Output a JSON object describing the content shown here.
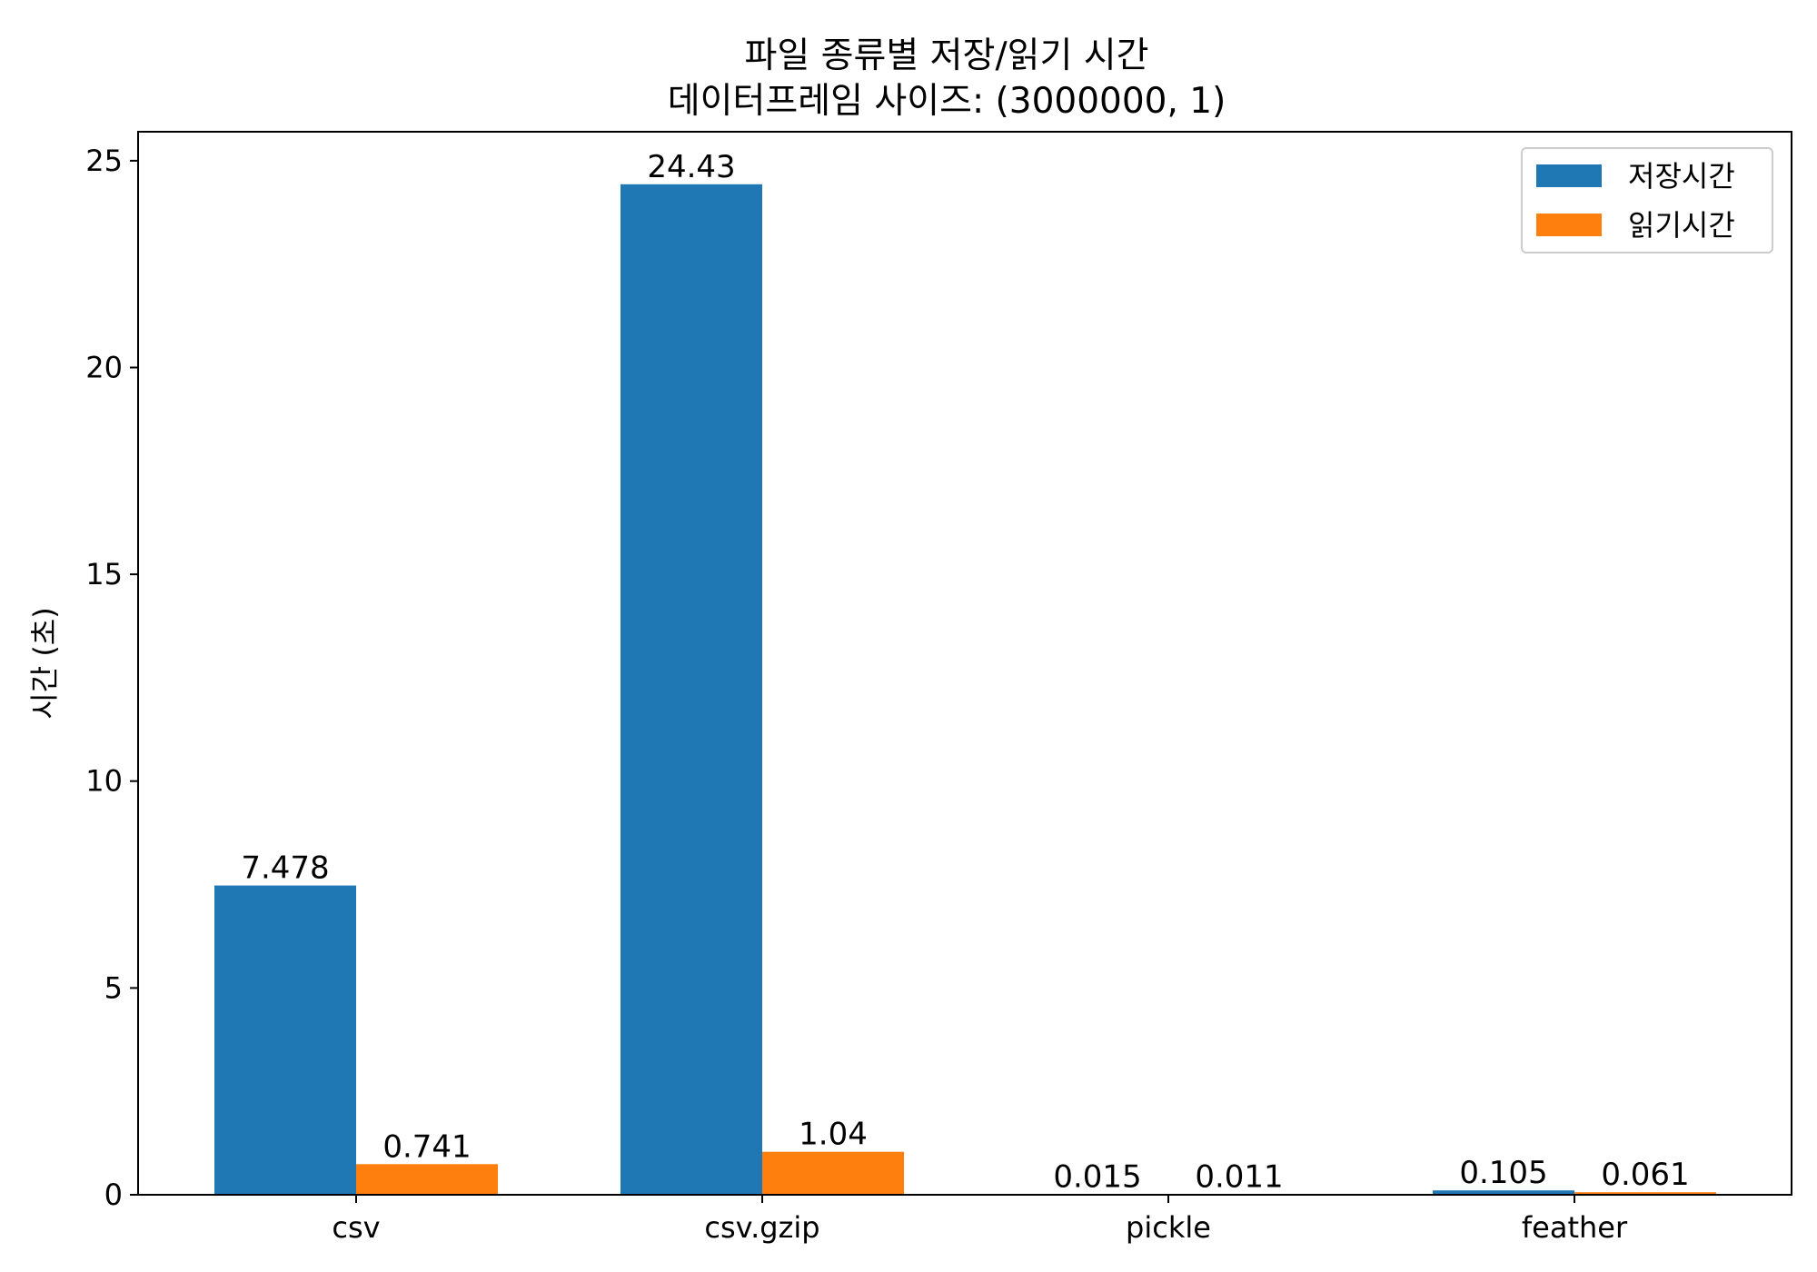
{
  "chart_data": {
    "type": "bar",
    "title": "파일 종류별 저장/읽기 시간",
    "subtitle": "데이터프레임 사이즈: (3000000, 1)",
    "xlabel": "",
    "ylabel": "시간 (초)",
    "categories": [
      "csv",
      "csv.gzip",
      "pickle",
      "feather"
    ],
    "series": [
      {
        "name": "저장시간",
        "color": "#1f77b4",
        "values": [
          7.478,
          24.43,
          0.015,
          0.105
        ],
        "labels": [
          "7.478",
          "24.43",
          "0.015",
          "0.105"
        ]
      },
      {
        "name": "읽기시간",
        "color": "#ff7f0e",
        "values": [
          0.741,
          1.04,
          0.011,
          0.061
        ],
        "labels": [
          "0.741",
          "1.04",
          "0.011",
          "0.061"
        ]
      }
    ],
    "ylim": [
      0,
      25.7
    ],
    "yticks": [
      0,
      5,
      10,
      15,
      20,
      25
    ],
    "ytick_labels": [
      "0",
      "5",
      "10",
      "15",
      "20",
      "25"
    ],
    "grid": false,
    "legend_position": "top-right"
  }
}
